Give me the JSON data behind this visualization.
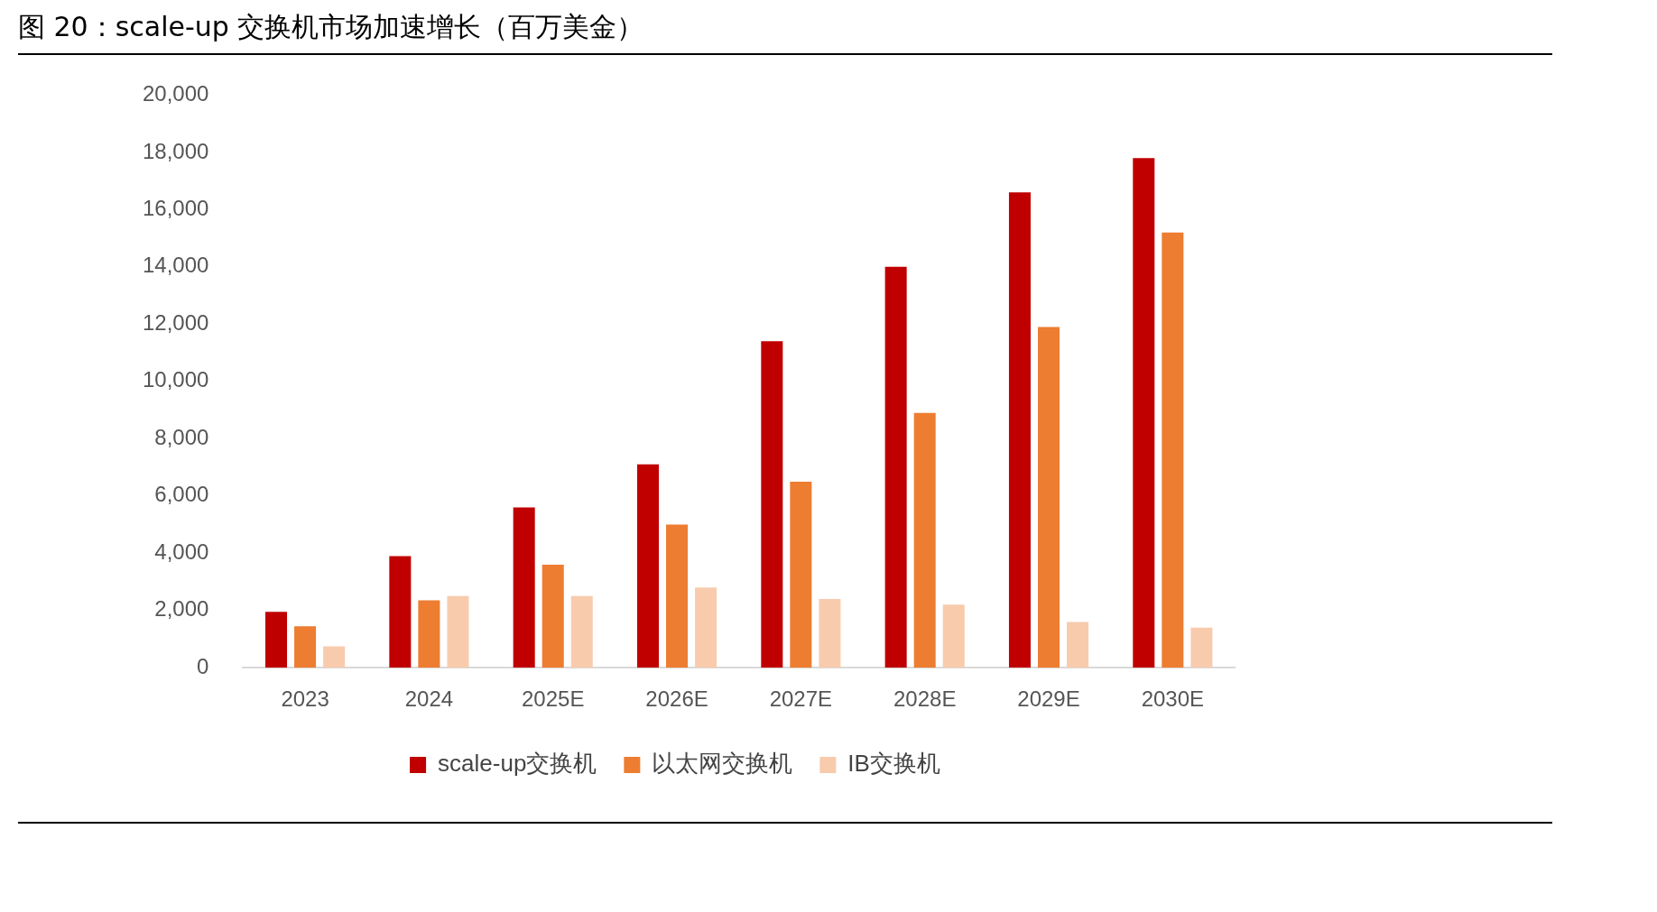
{
  "chart_data": {
    "type": "bar",
    "title": "图 20：scale-up 交换机市场加速增长（百万美金）",
    "categories": [
      "2023",
      "2024",
      "2025E",
      "2026E",
      "2027E",
      "2028E",
      "2029E",
      "2030E"
    ],
    "series": [
      {
        "name": "scale-up交换机",
        "color": "#c00000",
        "values": [
          1950,
          3900,
          5600,
          7100,
          11400,
          14000,
          16600,
          17800
        ]
      },
      {
        "name": "以太网交换机",
        "color": "#ed7d31",
        "values": [
          1450,
          2350,
          3600,
          5000,
          6500,
          8900,
          11900,
          15200
        ]
      },
      {
        "name": "IB交换机",
        "color": "#f8cbad",
        "values": [
          750,
          2500,
          2500,
          2800,
          2400,
          2200,
          1600,
          1400
        ]
      }
    ],
    "ylim": [
      0,
      20000
    ],
    "yticks": [
      0,
      {
        "value": 2000,
        "label": "2,000"
      },
      {
        "value": 4000,
        "label": "4,000"
      },
      {
        "value": 6000,
        "label": "6,000"
      },
      {
        "value": 8000,
        "label": "8,000"
      },
      {
        "value": 10000,
        "label": "10,000"
      },
      {
        "value": 12000,
        "label": "12,000"
      },
      {
        "value": 14000,
        "label": "14,000"
      },
      {
        "value": 16000,
        "label": "16,000"
      },
      {
        "value": 18000,
        "label": "18,000"
      },
      {
        "value": 20000,
        "label": "20,000"
      }
    ],
    "grid": false,
    "legend": "bottom"
  }
}
